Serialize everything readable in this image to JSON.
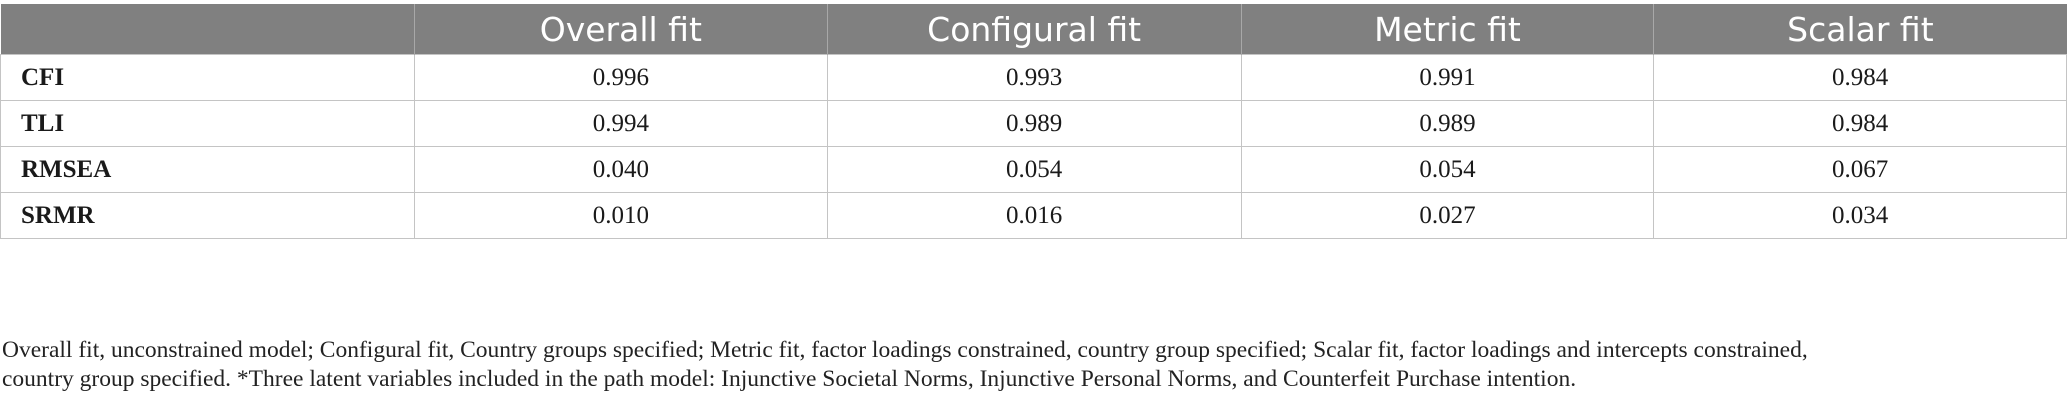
{
  "table": {
    "headers": [
      "",
      "Overall fit",
      "Configural fit",
      "Metric fit",
      "Scalar fit"
    ],
    "rows": [
      {
        "label": "CFI",
        "values": [
          "0.996",
          "0.993",
          "0.991",
          "0.984"
        ]
      },
      {
        "label": "TLI",
        "values": [
          "0.994",
          "0.989",
          "0.989",
          "0.984"
        ]
      },
      {
        "label": "RMSEA",
        "values": [
          "0.040",
          "0.054",
          "0.054",
          "0.067"
        ]
      },
      {
        "label": "SRMR",
        "values": [
          "0.010",
          "0.016",
          "0.027",
          "0.034"
        ]
      }
    ]
  },
  "footnote": {
    "line1": "Overall fit, unconstrained model; Configural fit, Country groups specified; Metric fit, factor loadings constrained, country group specified; Scalar fit, factor loadings and intercepts constrained,",
    "line2": "country group specified. *Three latent variables included in the path model: Injunctive Societal Norms, Injunctive Personal Norms, and Counterfeit Purchase intention."
  },
  "colors": {
    "header_bg": "#808080",
    "header_text": "#ffffff",
    "grid": "#c4c4c4"
  }
}
